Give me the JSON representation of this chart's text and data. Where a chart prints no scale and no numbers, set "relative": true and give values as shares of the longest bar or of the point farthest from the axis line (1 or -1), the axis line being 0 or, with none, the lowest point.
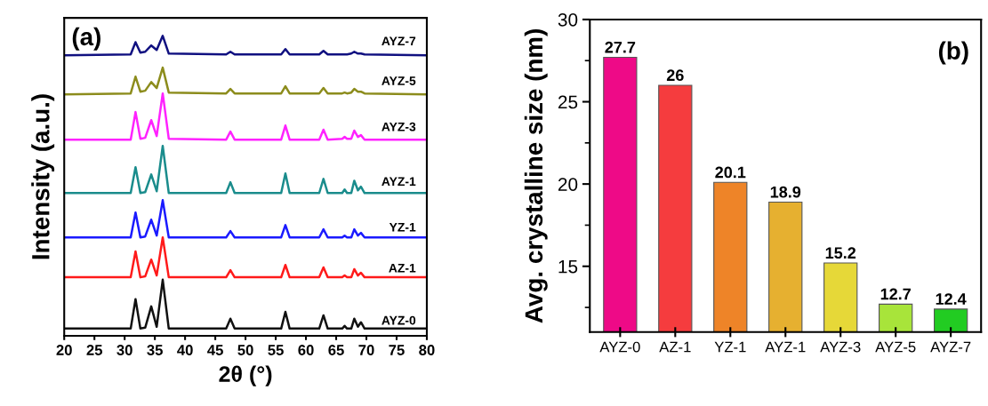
{
  "chart_data": [
    {
      "type": "line",
      "relative": true,
      "xlabel": "2θ (°)",
      "ylabel": "Intensity (a.u.)",
      "annotations": [
        "(a)"
      ],
      "xlim": [
        20,
        80
      ],
      "xticks": [
        20,
        25,
        30,
        35,
        40,
        45,
        50,
        55,
        60,
        65,
        70,
        75,
        80
      ],
      "tick_labels": "x",
      "legend": false,
      "grid": false,
      "x": [
        20,
        31.0,
        31.8,
        32.6,
        33.4,
        34.4,
        35.3,
        36.3,
        37.3,
        46.8,
        47.5,
        48.2,
        55.9,
        56.6,
        57.3,
        62.2,
        62.9,
        63.6,
        66.0,
        66.4,
        66.8,
        67.5,
        68.0,
        68.6,
        69.1,
        69.7,
        80
      ],
      "series": [
        {
          "name": "AYZ-0",
          "color": "#111111",
          "values": [
            0.024,
            0.024,
            0.122,
            0.024,
            0.027,
            0.098,
            0.03,
            0.187,
            0.024,
            0.024,
            0.057,
            0.024,
            0.024,
            0.08,
            0.024,
            0.024,
            0.068,
            0.024,
            0.024,
            0.033,
            0.024,
            0.024,
            0.057,
            0.03,
            0.045,
            0.024,
            0.024
          ]
        },
        {
          "name": "AZ-1",
          "color": "#ff1a1a",
          "values": [
            0.195,
            0.195,
            0.281,
            0.195,
            0.198,
            0.254,
            0.201,
            0.328,
            0.195,
            0.195,
            0.219,
            0.195,
            0.195,
            0.236,
            0.195,
            0.195,
            0.228,
            0.195,
            0.195,
            0.201,
            0.195,
            0.195,
            0.222,
            0.201,
            0.21,
            0.195,
            0.195
          ]
        },
        {
          "name": "YZ-1",
          "color": "#1a1aff",
          "values": [
            0.328,
            0.328,
            0.411,
            0.328,
            0.331,
            0.387,
            0.334,
            0.452,
            0.328,
            0.328,
            0.349,
            0.328,
            0.328,
            0.369,
            0.328,
            0.328,
            0.355,
            0.328,
            0.328,
            0.334,
            0.328,
            0.328,
            0.355,
            0.334,
            0.343,
            0.328,
            0.328
          ]
        },
        {
          "name": "AYZ-1",
          "color": "#1a8c8c",
          "values": [
            0.476,
            0.476,
            0.562,
            0.476,
            0.479,
            0.538,
            0.482,
            0.633,
            0.476,
            0.476,
            0.512,
            0.476,
            0.476,
            0.541,
            0.476,
            0.476,
            0.523,
            0.476,
            0.476,
            0.488,
            0.476,
            0.476,
            0.517,
            0.485,
            0.497,
            0.476,
            0.476
          ]
        },
        {
          "name": "AYZ-3",
          "color": "#ff22ff",
          "values": [
            0.654,
            0.654,
            0.746,
            0.657,
            0.66,
            0.719,
            0.666,
            0.808,
            0.657,
            0.654,
            0.681,
            0.654,
            0.654,
            0.701,
            0.654,
            0.654,
            0.687,
            0.654,
            0.657,
            0.663,
            0.657,
            0.657,
            0.684,
            0.663,
            0.669,
            0.654,
            0.654
          ]
        },
        {
          "name": "AYZ-5",
          "color": "#8c8c1c",
          "values": [
            0.805,
            0.808,
            0.864,
            0.814,
            0.817,
            0.846,
            0.826,
            0.894,
            0.811,
            0.808,
            0.823,
            0.808,
            0.808,
            0.832,
            0.808,
            0.808,
            0.826,
            0.808,
            0.808,
            0.811,
            0.808,
            0.811,
            0.823,
            0.814,
            0.814,
            0.808,
            0.805
          ]
        },
        {
          "name": "AYZ-7",
          "color": "#101080",
          "values": [
            0.935,
            0.938,
            0.979,
            0.944,
            0.947,
            0.968,
            0.953,
            1.0,
            0.941,
            0.938,
            0.947,
            0.938,
            0.938,
            0.956,
            0.938,
            0.938,
            0.95,
            0.938,
            0.938,
            0.938,
            0.938,
            0.941,
            0.947,
            0.941,
            0.941,
            0.938,
            0.935
          ]
        }
      ]
    },
    {
      "type": "bar",
      "ylabel": "Avg. crystalline size (nm)",
      "annotations": [
        "(b)"
      ],
      "categories": [
        "AYZ-0",
        "AZ-1",
        "YZ-1",
        "AYZ-1",
        "AYZ-3",
        "AYZ-5",
        "AYZ-7"
      ],
      "values": [
        27.7,
        26,
        20.1,
        18.9,
        15.2,
        12.7,
        12.4
      ],
      "colors": [
        "#ee0a87",
        "#f53c3e",
        "#ee8428",
        "#e6b030",
        "#e6d838",
        "#a8e43a",
        "#22cc22"
      ],
      "ylim": [
        11,
        30
      ],
      "yticks": [
        15,
        20,
        25,
        30
      ],
      "data_labels": true,
      "grid": false
    }
  ]
}
